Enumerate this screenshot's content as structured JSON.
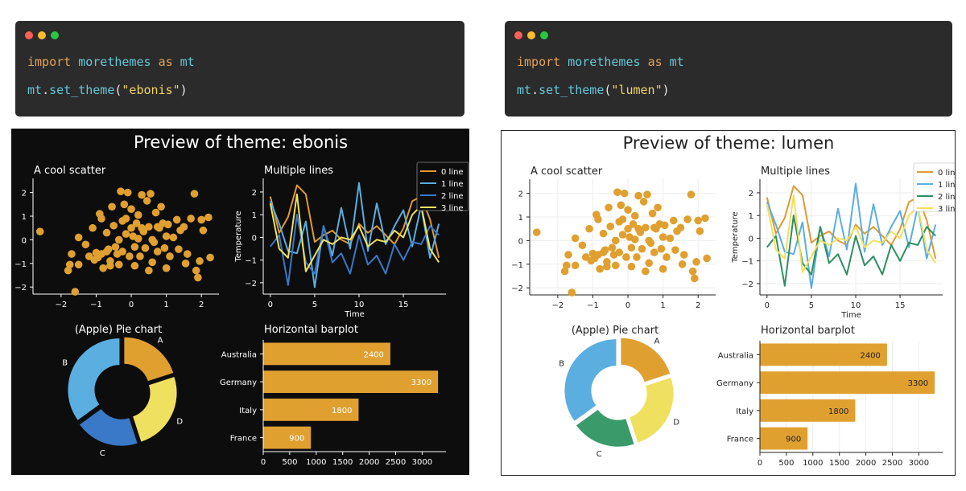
{
  "left": {
    "code": {
      "line1": {
        "kw": "import",
        "module": "morethemes",
        "as_kw": "as",
        "alias": "mt"
      },
      "line2": {
        "obj": "mt",
        "dot": ".",
        "func": "set_theme",
        "open": "(",
        "arg": "\"ebonis\"",
        "close": ")"
      }
    },
    "title": "Preview of theme: ebonis"
  },
  "right": {
    "code": {
      "line1": {
        "kw": "import",
        "module": "morethemes",
        "as_kw": "as",
        "alias": "mt"
      },
      "line2": {
        "obj": "mt",
        "dot": ".",
        "func": "set_theme",
        "open": "(",
        "arg": "\"lumen\"",
        "close": ")"
      }
    },
    "title": "Preview of theme: lumen"
  },
  "colors": {
    "dot_red": "#ff5f57",
    "dot_yellow": "#febc2e",
    "dot_green": "#28c840",
    "accent": "#e0a030"
  },
  "themes": {
    "ebonis": {
      "bg": "#0d0d0d",
      "fg": "#ffffff",
      "grid": null,
      "scatter": "#e0a030",
      "lines": [
        "#e09a30",
        "#5aaee0",
        "#3a78c8",
        "#f0e060"
      ],
      "pie": [
        "#e0a030",
        "#f0e060",
        "#3a78c8",
        "#5aaee0"
      ],
      "bar": "#e0a030",
      "barlabel": "#ffffff"
    },
    "lumen": {
      "bg": "#ffffff",
      "fg": "#222222",
      "grid": "#eeeeee",
      "scatter": "#e0a030",
      "lines": [
        "#e09a30",
        "#5aaee0",
        "#2e8f60",
        "#f0e060"
      ],
      "pie": [
        "#e0a030",
        "#f0e060",
        "#3a9a6a",
        "#5aaee0"
      ],
      "bar": "#e0a030",
      "barlabel": "#222222"
    }
  },
  "chart_data": [
    {
      "type": "scatter",
      "title": "A cool scatter",
      "xlim": [
        -2.8,
        2.5
      ],
      "ylim": [
        -2.3,
        2.6
      ],
      "xticks": [
        -2,
        -1,
        0,
        1,
        2
      ],
      "yticks": [
        -2,
        -1,
        0,
        1,
        2
      ],
      "points": [
        [
          -2.6,
          0.35
        ],
        [
          -1.6,
          -2.2
        ],
        [
          -1.7,
          -0.6
        ],
        [
          -1.8,
          -1.3
        ],
        [
          -1.75,
          -1.05
        ],
        [
          -1.5,
          0.1
        ],
        [
          -1.3,
          -0.2
        ],
        [
          -1.2,
          -0.7
        ],
        [
          -1.1,
          0.5
        ],
        [
          -1.05,
          -0.85
        ],
        [
          -1.0,
          -0.55
        ],
        [
          -0.95,
          -0.75
        ],
        [
          -0.9,
          1.1
        ],
        [
          -0.85,
          0.9
        ],
        [
          -0.85,
          -0.6
        ],
        [
          -0.8,
          -1.2
        ],
        [
          -0.7,
          -0.5
        ],
        [
          -0.7,
          0.3
        ],
        [
          -0.65,
          -0.4
        ],
        [
          -0.6,
          -1.1
        ],
        [
          -0.6,
          -0.9
        ],
        [
          -0.55,
          1.4
        ],
        [
          -0.5,
          0.6
        ],
        [
          -0.45,
          -0.3
        ],
        [
          -0.4,
          -0.6
        ],
        [
          -0.35,
          0.0
        ],
        [
          -0.35,
          -1.05
        ],
        [
          -0.3,
          2.05
        ],
        [
          -0.25,
          0.8
        ],
        [
          -0.25,
          -0.5
        ],
        [
          -0.2,
          1.5
        ],
        [
          -0.15,
          0.9
        ],
        [
          -0.1,
          2.0
        ],
        [
          -0.05,
          -0.7
        ],
        [
          0.0,
          1.3
        ],
        [
          0.0,
          0.5
        ],
        [
          0.05,
          0.15
        ],
        [
          0.1,
          -0.3
        ],
        [
          0.1,
          -1.1
        ],
        [
          0.15,
          0.7
        ],
        [
          0.2,
          0.05
        ],
        [
          0.2,
          1.05
        ],
        [
          0.25,
          -0.7
        ],
        [
          0.3,
          1.9
        ],
        [
          0.35,
          0.35
        ],
        [
          0.4,
          -0.35
        ],
        [
          0.45,
          1.65
        ],
        [
          0.5,
          0.55
        ],
        [
          0.5,
          -1.3
        ],
        [
          0.55,
          1.95
        ],
        [
          0.6,
          0.0
        ],
        [
          0.6,
          -0.95
        ],
        [
          0.65,
          -0.1
        ],
        [
          0.7,
          1.15
        ],
        [
          0.75,
          -0.5
        ],
        [
          0.8,
          0.5
        ],
        [
          0.85,
          1.4
        ],
        [
          0.9,
          0.7
        ],
        [
          0.95,
          -0.35
        ],
        [
          1.0,
          0.15
        ],
        [
          1.0,
          -1.2
        ],
        [
          1.05,
          0.65
        ],
        [
          1.1,
          -0.7
        ],
        [
          1.2,
          0.1
        ],
        [
          1.3,
          0.85
        ],
        [
          1.35,
          -0.4
        ],
        [
          1.4,
          0.4
        ],
        [
          1.5,
          0.55
        ],
        [
          1.55,
          -1.0
        ],
        [
          1.6,
          -0.6
        ],
        [
          1.7,
          0.9
        ],
        [
          1.8,
          1.95
        ],
        [
          1.85,
          -1.3
        ],
        [
          1.9,
          -1.6
        ],
        [
          1.95,
          -0.9
        ],
        [
          2.0,
          0.85
        ],
        [
          2.05,
          0.4
        ],
        [
          2.2,
          0.95
        ],
        [
          2.25,
          -0.75
        ],
        [
          -1.5,
          -1.05
        ],
        [
          0.3,
          0.5
        ],
        [
          -0.15,
          0.25
        ],
        [
          0.75,
          0.55
        ]
      ]
    },
    {
      "type": "line",
      "title": "Multiple lines",
      "xlabel": "Time",
      "ylabel": "Temperature",
      "xlim": [
        -0.8,
        19.8
      ],
      "ylim": [
        -2.5,
        2.6
      ],
      "xticks": [
        0,
        5,
        10,
        15
      ],
      "yticks": [
        -2,
        -1,
        0,
        1,
        2
      ],
      "legend_position": "top-right",
      "x": [
        0,
        1,
        2,
        3,
        4,
        5,
        6,
        7,
        8,
        9,
        10,
        11,
        12,
        13,
        14,
        15,
        16,
        17,
        18,
        19
      ],
      "series": [
        {
          "name": "0 line",
          "values": [
            1.8,
            0.2,
            0.9,
            2.3,
            1.9,
            -0.2,
            0.1,
            0.3,
            -0.1,
            -0.3,
            0.6,
            0.2,
            0.5,
            0.1,
            -0.3,
            0.4,
            1.6,
            1.8,
            0.8,
            -0.9
          ]
        },
        {
          "name": "1 line",
          "values": [
            1.6,
            0.6,
            -0.6,
            -0.7,
            0.7,
            -2.2,
            0.5,
            -0.8,
            1.3,
            -0.5,
            2.4,
            -0.6,
            1.5,
            -0.3,
            0.5,
            1.2,
            -0.4,
            1.4,
            -0.9,
            0.6
          ]
        },
        {
          "name": "2 line",
          "values": [
            -0.4,
            0.1,
            -2.1,
            1.0,
            -1.1,
            -1.6,
            0.5,
            -1.1,
            -0.7,
            -1.6,
            0.1,
            -1.2,
            -0.8,
            -1.6,
            -0.3,
            -1.0,
            -0.2,
            -0.3,
            0.5,
            0.1
          ]
        },
        {
          "name": "3 line",
          "values": [
            1.5,
            -0.5,
            -0.9,
            1.9,
            -1.5,
            -0.8,
            -0.1,
            -0.3,
            0.0,
            -0.1,
            0.5,
            -0.4,
            -0.1,
            -0.2,
            0.3,
            0.0,
            1.0,
            1.4,
            -0.5,
            -1.1
          ]
        }
      ]
    },
    {
      "type": "pie",
      "title": "(Apple) Pie chart",
      "categories": [
        "A",
        "D",
        "C",
        "B"
      ],
      "values": [
        20,
        25,
        20,
        35
      ],
      "style": "donut, exploded wedges"
    },
    {
      "type": "bar",
      "orientation": "horizontal",
      "title": "Horizontal barplot",
      "categories": [
        "Australia",
        "Germany",
        "Italy",
        "France"
      ],
      "values": [
        2400,
        3300,
        1800,
        900
      ],
      "xlim": [
        0,
        3450
      ],
      "xticks": [
        0,
        500,
        1000,
        1500,
        2000,
        2500,
        3000
      ]
    }
  ]
}
